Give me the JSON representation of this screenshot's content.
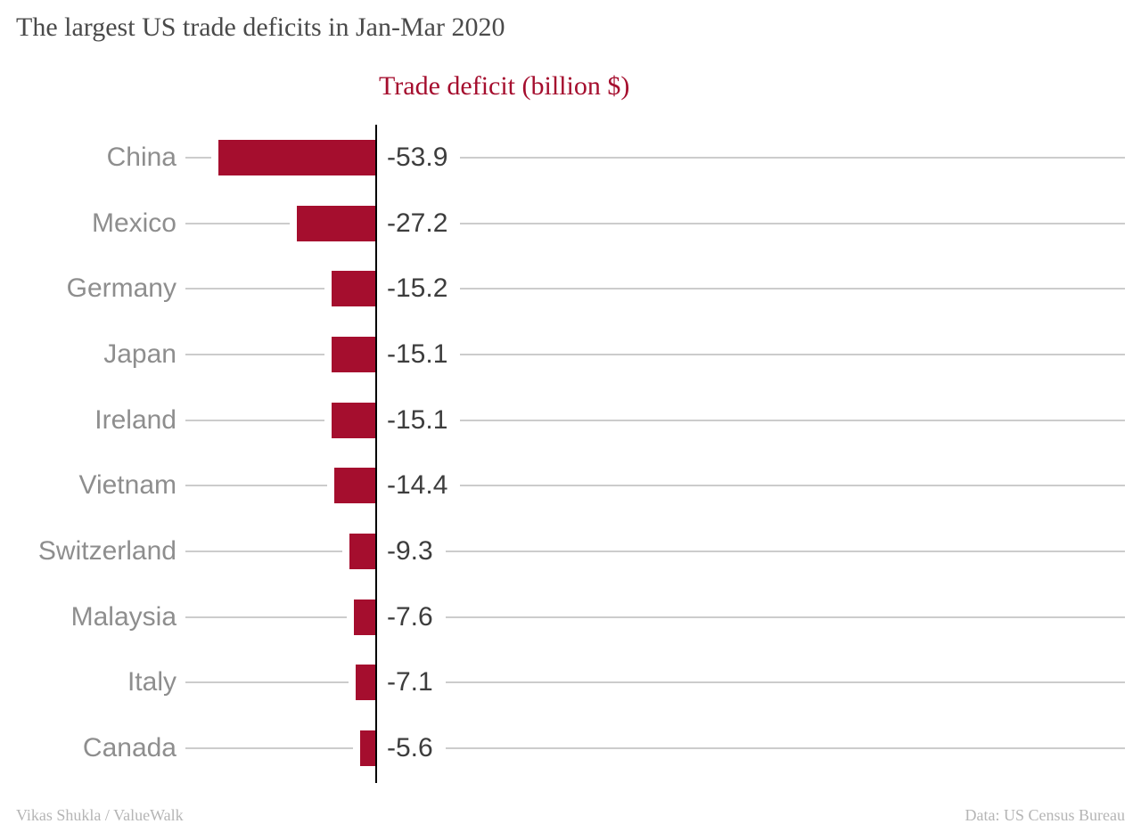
{
  "chart_data": {
    "type": "bar",
    "orientation": "horizontal",
    "title": "The largest US trade deficits in Jan-Mar 2020",
    "series_label": "Trade deficit (billion $)",
    "categories": [
      "China",
      "Mexico",
      "Germany",
      "Japan",
      "Ireland",
      "Vietnam",
      "Switzerland",
      "Malaysia",
      "Italy",
      "Canada"
    ],
    "values": [
      -53.9,
      -27.2,
      -15.2,
      -15.1,
      -15.1,
      -14.4,
      -9.3,
      -7.6,
      -7.1,
      -5.6
    ],
    "value_labels": [
      "-53.9",
      "-27.2",
      "-15.2",
      "-15.1",
      "-15.1",
      "-14.4",
      "-9.3",
      "-7.6",
      "-7.1",
      "-5.6"
    ],
    "xlim": [
      -53.9,
      0
    ],
    "grid": "horizontal-row-lines",
    "bar_color": "#a50e2e",
    "accent_color": "#a50e2e",
    "axis_color": "#000000",
    "grid_color": "#cccccc",
    "category_label_color": "#8e8e8e",
    "value_label_color": "#3d3d3d"
  },
  "footer": {
    "left": "Vikas Shukla / ValueWalk",
    "right": "Data: US Census Bureau"
  }
}
